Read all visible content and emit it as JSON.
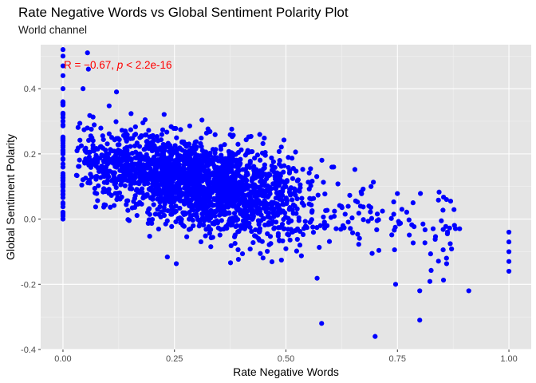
{
  "chart_data": {
    "type": "scatter",
    "title": "Rate Negative Words vs Global Sentiment Polarity Plot",
    "subtitle": "World channel",
    "xlabel": "Rate Negative Words",
    "ylabel": "Global Sentiment Polarity",
    "xlim": [
      -0.05,
      1.05
    ],
    "ylim": [
      -0.4,
      0.535
    ],
    "x_ticks": [
      0.0,
      0.25,
      0.5,
      0.75,
      1.0
    ],
    "x_tick_labels": [
      "0.00",
      "0.25",
      "0.50",
      "0.75",
      "1.00"
    ],
    "y_ticks": [
      -0.4,
      -0.2,
      0.0,
      0.2,
      0.4
    ],
    "y_tick_labels": [
      "-0.4",
      "-0.2",
      "0.0",
      "0.2",
      "0.4"
    ],
    "grid": true,
    "background": "#e5e5e5",
    "point_color": "#0000ff",
    "annotation": {
      "r_part": "R = −0.67, ",
      "p_symbol": "p",
      "p_part": " < 2.2e-16",
      "color": "#ff0000"
    },
    "trend": {
      "intercept": 0.2,
      "slope": -0.29
    },
    "points_sample": [
      [
        0.0,
        0.52
      ],
      [
        0.0,
        0.5
      ],
      [
        0.0,
        0.47
      ],
      [
        0.0,
        0.44
      ],
      [
        0.0,
        0.4
      ],
      [
        0.0,
        0.35
      ],
      [
        0.0,
        0.3
      ],
      [
        0.0,
        0.25
      ],
      [
        0.0,
        0.2
      ],
      [
        0.0,
        0.1
      ],
      [
        0.0,
        0.05
      ],
      [
        0.0,
        0.0
      ],
      [
        0.055,
        0.51
      ],
      [
        0.057,
        0.46
      ],
      [
        0.045,
        0.4
      ],
      [
        0.12,
        0.39
      ],
      [
        0.58,
        -0.32
      ],
      [
        0.7,
        -0.36
      ],
      [
        0.8,
        -0.31
      ],
      [
        0.8,
        -0.22
      ],
      [
        0.91,
        -0.22
      ],
      [
        0.86,
        -0.12
      ],
      [
        0.86,
        0.06
      ],
      [
        0.785,
        0.05
      ],
      [
        0.76,
        0.03
      ],
      [
        1.0,
        -0.04
      ],
      [
        1.0,
        -0.07
      ],
      [
        1.0,
        -0.1
      ],
      [
        1.0,
        -0.13
      ],
      [
        1.0,
        -0.16
      ]
    ]
  }
}
